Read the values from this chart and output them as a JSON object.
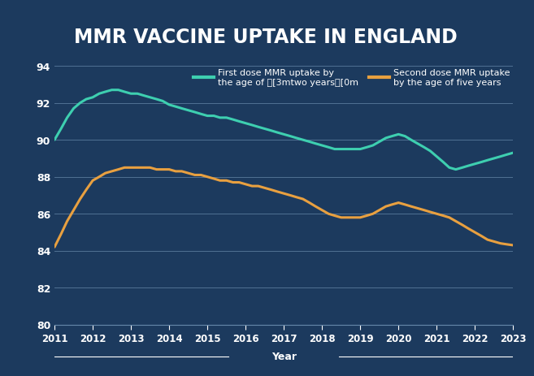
{
  "title": "MMR VACCINE UPTAKE IN ENGLAND",
  "title_color": "#ffffff",
  "plot_bg": "#1c3a5e",
  "title_bg": "#0a1a2e",
  "ylabel": "",
  "xlabel": "Year",
  "ylim": [
    80,
    94
  ],
  "yticks": [
    80,
    82,
    84,
    86,
    88,
    90,
    92,
    94
  ],
  "xlim": [
    2011,
    2023
  ],
  "xticks": [
    2011,
    2012,
    2013,
    2014,
    2015,
    2016,
    2017,
    2018,
    2019,
    2020,
    2021,
    2022,
    2023
  ],
  "line1_label_part1": "First dose MMR uptake by",
  "line1_label_part2": "the age of ",
  "line1_label_italic": "two years",
  "line2_label_part1": "Second dose MMR uptake",
  "line2_label_part2": "by the age of ",
  "line2_label_italic": "five years",
  "line1_color": "#3ecfb0",
  "line2_color": "#e8a040",
  "line1_x": [
    2011.0,
    2011.17,
    2011.33,
    2011.5,
    2011.67,
    2011.83,
    2012.0,
    2012.17,
    2012.33,
    2012.5,
    2012.67,
    2012.83,
    2013.0,
    2013.17,
    2013.33,
    2013.5,
    2013.67,
    2013.83,
    2014.0,
    2014.17,
    2014.33,
    2014.5,
    2014.67,
    2014.83,
    2015.0,
    2015.17,
    2015.33,
    2015.5,
    2015.67,
    2015.83,
    2016.0,
    2016.17,
    2016.33,
    2016.5,
    2016.67,
    2016.83,
    2017.0,
    2017.17,
    2017.33,
    2017.5,
    2017.67,
    2017.83,
    2018.0,
    2018.17,
    2018.33,
    2018.5,
    2018.67,
    2018.83,
    2019.0,
    2019.17,
    2019.33,
    2019.5,
    2019.67,
    2019.83,
    2020.0,
    2020.17,
    2020.33,
    2020.5,
    2020.67,
    2020.83,
    2021.0,
    2021.17,
    2021.33,
    2021.5,
    2021.67,
    2021.83,
    2022.0,
    2022.17,
    2022.33,
    2022.5,
    2022.67,
    2022.83,
    2023.0
  ],
  "line1_y": [
    90.0,
    90.6,
    91.2,
    91.7,
    92.0,
    92.2,
    92.3,
    92.5,
    92.6,
    92.7,
    92.7,
    92.6,
    92.5,
    92.5,
    92.4,
    92.3,
    92.2,
    92.1,
    91.9,
    91.8,
    91.7,
    91.6,
    91.5,
    91.4,
    91.3,
    91.3,
    91.2,
    91.2,
    91.1,
    91.0,
    90.9,
    90.8,
    90.7,
    90.6,
    90.5,
    90.4,
    90.3,
    90.2,
    90.1,
    90.0,
    89.9,
    89.8,
    89.7,
    89.6,
    89.5,
    89.5,
    89.5,
    89.5,
    89.5,
    89.6,
    89.7,
    89.9,
    90.1,
    90.2,
    90.3,
    90.2,
    90.0,
    89.8,
    89.6,
    89.4,
    89.1,
    88.8,
    88.5,
    88.4,
    88.5,
    88.6,
    88.7,
    88.8,
    88.9,
    89.0,
    89.1,
    89.2,
    89.3
  ],
  "line2_x": [
    2011.0,
    2011.17,
    2011.33,
    2011.5,
    2011.67,
    2011.83,
    2012.0,
    2012.17,
    2012.33,
    2012.5,
    2012.67,
    2012.83,
    2013.0,
    2013.17,
    2013.33,
    2013.5,
    2013.67,
    2013.83,
    2014.0,
    2014.17,
    2014.33,
    2014.5,
    2014.67,
    2014.83,
    2015.0,
    2015.17,
    2015.33,
    2015.5,
    2015.67,
    2015.83,
    2016.0,
    2016.17,
    2016.33,
    2016.5,
    2016.67,
    2016.83,
    2017.0,
    2017.17,
    2017.33,
    2017.5,
    2017.67,
    2017.83,
    2018.0,
    2018.17,
    2018.33,
    2018.5,
    2018.67,
    2018.83,
    2019.0,
    2019.17,
    2019.33,
    2019.5,
    2019.67,
    2019.83,
    2020.0,
    2020.17,
    2020.33,
    2020.5,
    2020.67,
    2020.83,
    2021.0,
    2021.17,
    2021.33,
    2021.5,
    2021.67,
    2021.83,
    2022.0,
    2022.17,
    2022.33,
    2022.5,
    2022.67,
    2022.83,
    2023.0
  ],
  "line2_y": [
    84.2,
    84.9,
    85.6,
    86.2,
    86.8,
    87.3,
    87.8,
    88.0,
    88.2,
    88.3,
    88.4,
    88.5,
    88.5,
    88.5,
    88.5,
    88.5,
    88.4,
    88.4,
    88.4,
    88.3,
    88.3,
    88.2,
    88.1,
    88.1,
    88.0,
    87.9,
    87.8,
    87.8,
    87.7,
    87.7,
    87.6,
    87.5,
    87.5,
    87.4,
    87.3,
    87.2,
    87.1,
    87.0,
    86.9,
    86.8,
    86.6,
    86.4,
    86.2,
    86.0,
    85.9,
    85.8,
    85.8,
    85.8,
    85.8,
    85.9,
    86.0,
    86.2,
    86.4,
    86.5,
    86.6,
    86.5,
    86.4,
    86.3,
    86.2,
    86.1,
    86.0,
    85.9,
    85.8,
    85.6,
    85.4,
    85.2,
    85.0,
    84.8,
    84.6,
    84.5,
    84.4,
    84.35,
    84.3
  ],
  "grid_color": "#6688aa",
  "tick_color": "#ffffff",
  "legend_text_color": "#ffffff",
  "line_width": 2.2
}
